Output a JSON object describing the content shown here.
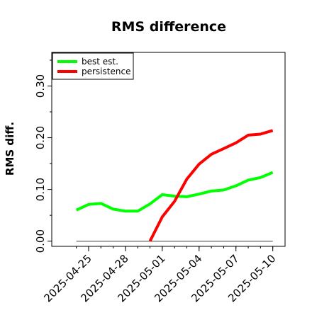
{
  "chart_data": {
    "type": "line",
    "title": "RMS difference",
    "xlabel": "",
    "ylabel": "RMS diff.",
    "legend_position": "top-left",
    "grid": false,
    "x_ticks": [
      "2025-04-25",
      "2025-04-28",
      "2025-05-01",
      "2025-05-04",
      "2025-05-07",
      "2025-05-10"
    ],
    "y_ticks": [
      "0.00",
      "0.10",
      "0.20",
      "0.30"
    ],
    "xlim": [
      "2025-04-22",
      "2025-05-11"
    ],
    "ylim": [
      -0.01,
      0.365
    ],
    "reference_line": {
      "y": 0,
      "x_start": "2025-04-24",
      "x_end": "2025-05-10",
      "color": "#7f7f7f"
    },
    "series": [
      {
        "name": "best est.",
        "color": "#00ff00",
        "x": [
          "2025-04-24",
          "2025-04-25",
          "2025-04-26",
          "2025-04-27",
          "2025-04-28",
          "2025-04-29",
          "2025-04-30",
          "2025-05-01",
          "2025-05-02",
          "2025-05-03",
          "2025-05-04",
          "2025-05-05",
          "2025-05-06",
          "2025-05-07",
          "2025-05-08",
          "2025-05-09",
          "2025-05-10"
        ],
        "values": [
          0.06,
          0.071,
          0.073,
          0.062,
          0.058,
          0.058,
          0.072,
          0.09,
          0.087,
          0.086,
          0.091,
          0.097,
          0.099,
          0.107,
          0.118,
          0.123,
          0.133
        ]
      },
      {
        "name": "persistence",
        "color": "#ff0000",
        "x": [
          "2025-04-30",
          "2025-05-01",
          "2025-05-02",
          "2025-05-03",
          "2025-05-04",
          "2025-05-05",
          "2025-05-06",
          "2025-05-07",
          "2025-05-08",
          "2025-05-09",
          "2025-05-10"
        ],
        "values": [
          0.0,
          0.047,
          0.077,
          0.12,
          0.149,
          0.168,
          0.179,
          0.19,
          0.205,
          0.207,
          0.214
        ]
      }
    ]
  }
}
